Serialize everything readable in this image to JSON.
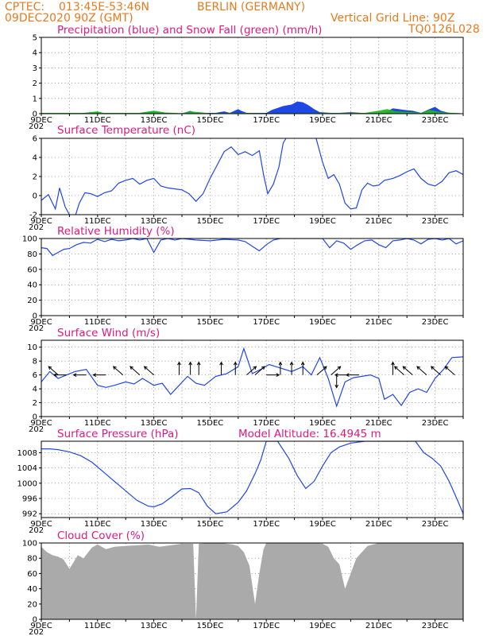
{
  "header": {
    "line1_left": "CPTEC:",
    "line1_coords": "013:45E-53:46N",
    "line1_location": "BERLIN (GERMANY)",
    "line2_left": "09DEC2020 90Z (GMT)",
    "line2_right": "Vertical Grid Line: 90Z",
    "line3_right": "TQ0126L028",
    "cut_label": "202"
  },
  "colors": {
    "header": "#e87a1e",
    "title": "#e0197d",
    "line": "#1f47e6",
    "precip": "#1f47e6",
    "snow": "#22b822",
    "cloud": "#aaaaaa"
  },
  "x_axis": {
    "day_start": 9,
    "day_end": 24,
    "tick_labels": [
      "9DEC",
      "11DEC",
      "13DEC",
      "15DEC",
      "17DEC",
      "19DEC",
      "21DEC",
      "23DEC"
    ]
  },
  "chart_data": [
    {
      "id": "precip",
      "type": "area",
      "title": "Precipitation (blue) and Snow Fall (green) (mm/h)",
      "ylim": [
        0,
        5
      ],
      "yticks": [
        "0",
        "1",
        "2",
        "3",
        "4",
        "5"
      ],
      "series": [
        {
          "name": "Precipitation",
          "color": "#1f47e6",
          "x": [
            9.0,
            10.5,
            11.0,
            11.2,
            12.5,
            13.0,
            13.2,
            13.4,
            14.0,
            14.3,
            14.5,
            15.2,
            15.5,
            15.7,
            16.0,
            16.1,
            16.3,
            17.0,
            17.2,
            17.6,
            17.9,
            18.1,
            18.3,
            18.5,
            18.7,
            18.9,
            19.3,
            19.6,
            20.0,
            20.4,
            20.8,
            21.2,
            21.5,
            21.9,
            22.2,
            22.5,
            22.8,
            23.0,
            23.2,
            23.5,
            24.0
          ],
          "values": [
            0.02,
            0.03,
            0.12,
            0.03,
            0.05,
            0.18,
            0.12,
            0.05,
            0.02,
            0.18,
            0.05,
            0.05,
            0.15,
            0.05,
            0.3,
            0.2,
            0.05,
            0.05,
            0.25,
            0.5,
            0.6,
            0.8,
            0.75,
            0.55,
            0.3,
            0.1,
            0.05,
            0.05,
            0.1,
            0.05,
            0.05,
            0.05,
            0.35,
            0.25,
            0.2,
            0.05,
            0.3,
            0.45,
            0.2,
            0.05,
            0.02
          ]
        },
        {
          "name": "Snow Fall",
          "color": "#22b822",
          "x": [
            9.0,
            10.5,
            11.0,
            11.2,
            12.5,
            13.0,
            13.4,
            14.0,
            14.3,
            14.6,
            15.0,
            16.0,
            17.0,
            20.5,
            21.0,
            21.3,
            21.6,
            22.2,
            22.5,
            22.8,
            23.2,
            24.0
          ],
          "values": [
            0.05,
            0.05,
            0.15,
            0.05,
            0.05,
            0.2,
            0.08,
            0.03,
            0.15,
            0.1,
            0.03,
            0.05,
            0.03,
            0.05,
            0.2,
            0.3,
            0.15,
            0.1,
            0.05,
            0.25,
            0.1,
            0.02
          ]
        }
      ]
    },
    {
      "id": "temp",
      "type": "line",
      "title": "Surface Temperature (nC)",
      "ylim": [
        -2,
        6
      ],
      "yticks": [
        "-2",
        "0",
        "2",
        "4",
        "6"
      ],
      "series": [
        {
          "name": "",
          "x": [
            9.0,
            9.25,
            9.5,
            9.65,
            9.85,
            10.0,
            10.2,
            10.35,
            10.55,
            10.75,
            11.0,
            11.25,
            11.5,
            11.75,
            12.0,
            12.25,
            12.5,
            12.75,
            13.0,
            13.25,
            13.5,
            13.75,
            14.0,
            14.25,
            14.5,
            14.75,
            15.0,
            15.25,
            15.5,
            15.75,
            16.0,
            16.25,
            16.5,
            16.75,
            16.9,
            17.05,
            17.25,
            17.45,
            17.6,
            17.8,
            18.0,
            18.5,
            18.75,
            19.0,
            19.2,
            19.4,
            19.6,
            19.8,
            20.0,
            20.2,
            20.4,
            20.6,
            20.8,
            21.0,
            21.2,
            21.5,
            21.75,
            22.0,
            22.25,
            22.5,
            22.75,
            23.0,
            23.25,
            23.5,
            23.75,
            24.0
          ],
          "values": [
            -0.5,
            0.1,
            -1.4,
            0.8,
            -1.2,
            -2.0,
            -2.2,
            -0.8,
            0.3,
            0.2,
            -0.1,
            0.3,
            0.5,
            1.3,
            1.6,
            1.8,
            1.2,
            1.6,
            1.8,
            1.0,
            0.8,
            0.7,
            0.6,
            0.2,
            -0.6,
            0.2,
            1.8,
            3.2,
            4.6,
            5.1,
            4.3,
            4.6,
            4.2,
            4.7,
            2.2,
            0.2,
            1.2,
            3.0,
            5.5,
            6.5,
            7.0,
            7.0,
            6.2,
            3.5,
            1.8,
            2.2,
            1.2,
            -0.8,
            -1.4,
            -1.3,
            0.6,
            1.3,
            1.0,
            1.1,
            1.6,
            1.8,
            2.1,
            2.5,
            2.8,
            1.8,
            1.2,
            1.0,
            1.5,
            2.4,
            2.6,
            2.2
          ]
        }
      ]
    },
    {
      "id": "rh",
      "type": "line",
      "title": "Relative Humidity (%)",
      "ylim": [
        0,
        100
      ],
      "yticks": [
        "0",
        "20",
        "40",
        "60",
        "80",
        "100"
      ],
      "series": [
        {
          "name": "",
          "x": [
            9.0,
            9.2,
            9.4,
            9.6,
            9.8,
            10.0,
            10.25,
            10.5,
            10.75,
            11.0,
            11.25,
            11.5,
            11.75,
            12.0,
            12.25,
            12.5,
            12.75,
            13.0,
            13.25,
            13.5,
            13.75,
            14.0,
            14.5,
            15.0,
            15.5,
            16.0,
            16.25,
            16.5,
            16.75,
            17.0,
            17.25,
            17.5,
            18.0,
            18.5,
            19.0,
            19.25,
            19.5,
            19.75,
            20.0,
            20.25,
            20.5,
            20.75,
            21.0,
            21.25,
            21.5,
            21.75,
            22.0,
            22.25,
            22.5,
            22.75,
            23.0,
            23.25,
            23.5,
            23.75,
            24.0
          ],
          "values": [
            88,
            87,
            78,
            82,
            86,
            87,
            92,
            95,
            94,
            99,
            96,
            99,
            97,
            98,
            100,
            98,
            100,
            82,
            98,
            100,
            98,
            100,
            98,
            97,
            99,
            98,
            96,
            90,
            84,
            92,
            98,
            100,
            100,
            100,
            100,
            88,
            97,
            94,
            86,
            92,
            97,
            98,
            92,
            88,
            97,
            98,
            100,
            98,
            93,
            99,
            100,
            98,
            100,
            93,
            97
          ]
        }
      ]
    },
    {
      "id": "wind",
      "type": "line",
      "title": "Surface Wind (m/s)",
      "ylim": [
        0,
        11
      ],
      "yticks": [
        "0",
        "2",
        "4",
        "6",
        "8",
        "10"
      ],
      "series": [
        {
          "name": "",
          "x": [
            9.0,
            9.3,
            9.6,
            9.9,
            10.2,
            10.6,
            11.0,
            11.3,
            11.6,
            12.0,
            12.3,
            12.6,
            13.0,
            13.3,
            13.6,
            13.9,
            14.2,
            14.5,
            14.8,
            15.2,
            15.6,
            16.0,
            16.2,
            16.5,
            16.8,
            17.1,
            17.5,
            17.9,
            18.3,
            18.6,
            18.9,
            19.2,
            19.5,
            19.8,
            20.1,
            20.4,
            20.7,
            21.0,
            21.2,
            21.5,
            21.8,
            22.1,
            22.4,
            22.7,
            23.0,
            23.3,
            23.6,
            24.0
          ],
          "values": [
            5.0,
            6.5,
            5.5,
            6.0,
            6.5,
            6.8,
            4.5,
            4.2,
            4.5,
            5.0,
            4.7,
            5.5,
            4.5,
            4.8,
            3.2,
            4.5,
            5.8,
            4.8,
            4.5,
            5.8,
            6.2,
            7.2,
            9.8,
            6.2,
            6.8,
            7.5,
            7.0,
            6.5,
            7.2,
            6.0,
            8.5,
            5.5,
            1.5,
            5.0,
            5.6,
            5.8,
            6.0,
            5.5,
            2.5,
            3.2,
            1.6,
            3.5,
            4.0,
            3.5,
            5.5,
            6.8,
            8.5,
            8.6
          ]
        }
      ]
    },
    {
      "id": "pres",
      "type": "line",
      "title": "Surface Pressure (hPa)",
      "subtitle": "Model Altitude: 16.4945 m",
      "ylim": [
        991,
        1011
      ],
      "yticks": [
        "992",
        "996",
        "1000",
        "1004",
        "1008"
      ],
      "series": [
        {
          "name": "",
          "x": [
            9.0,
            9.3,
            9.6,
            10.0,
            10.4,
            10.8,
            11.2,
            11.6,
            12.0,
            12.4,
            12.8,
            13.0,
            13.3,
            13.6,
            14.0,
            14.3,
            14.6,
            14.9,
            15.2,
            15.6,
            16.0,
            16.3,
            16.6,
            16.8,
            17.0,
            17.4,
            17.8,
            18.1,
            18.4,
            18.7,
            19.0,
            19.3,
            19.6,
            20.0,
            20.5,
            21.0,
            21.5,
            22.0,
            22.3,
            22.6,
            22.9,
            23.2,
            23.5,
            23.8,
            24.0
          ],
          "values": [
            1009.0,
            1009.0,
            1008.8,
            1008.2,
            1007.2,
            1005.5,
            1003.0,
            1000.5,
            998.0,
            995.5,
            994.0,
            993.8,
            994.6,
            996.2,
            998.5,
            998.6,
            997.5,
            994.0,
            992.0,
            992.5,
            995.0,
            998.0,
            1002.5,
            1006.0,
            1011.0,
            1011.0,
            1006.5,
            1002.0,
            998.6,
            1000.5,
            1004.5,
            1008.0,
            1009.5,
            1010.5,
            1011.0,
            1011.0,
            1011.0,
            1011.0,
            1011.0,
            1008.0,
            1006.5,
            1004.5,
            1000.5,
            995.5,
            992.0
          ]
        }
      ]
    },
    {
      "id": "cloud",
      "type": "area",
      "title": "Cloud Cover (%)",
      "ylim": [
        0,
        100
      ],
      "yticks": [
        "0",
        "20",
        "40",
        "60",
        "80",
        "100"
      ],
      "series": [
        {
          "name": "",
          "color": "#aaaaaa",
          "x": [
            9.0,
            9.2,
            9.4,
            9.6,
            9.8,
            10.0,
            10.3,
            10.5,
            10.8,
            11.0,
            11.3,
            11.6,
            12.0,
            12.4,
            12.8,
            13.2,
            13.6,
            14.0,
            14.4,
            14.5,
            14.6,
            15.0,
            15.4,
            15.8,
            16.0,
            16.2,
            16.4,
            16.6,
            16.75,
            16.9,
            17.0,
            17.2,
            17.6,
            18.0,
            18.4,
            18.8,
            19.0,
            19.2,
            19.4,
            19.6,
            19.8,
            20.0,
            20.2,
            20.6,
            21.0,
            21.5,
            22.0,
            22.5,
            23.0,
            23.5,
            24.0
          ],
          "values": [
            95,
            88,
            84,
            82,
            78,
            66,
            84,
            80,
            94,
            98,
            92,
            95,
            96,
            97,
            98,
            95,
            97,
            99,
            99,
            0,
            99,
            100,
            100,
            98,
            96,
            88,
            70,
            20,
            60,
            92,
            100,
            100,
            100,
            100,
            100,
            100,
            99,
            95,
            80,
            72,
            40,
            60,
            80,
            96,
            100,
            100,
            100,
            100,
            100,
            100,
            100
          ]
        }
      ]
    }
  ],
  "wind_arrows": [
    {
      "x": 9.6,
      "y": 6.0,
      "dir": "up-left"
    },
    {
      "x": 9.9,
      "y": 6.0,
      "dir": "left"
    },
    {
      "x": 10.6,
      "y": 6.0,
      "dir": "left"
    },
    {
      "x": 11.3,
      "y": 6.0,
      "dir": "left"
    },
    {
      "x": 11.9,
      "y": 6.0,
      "dir": "up-left"
    },
    {
      "x": 12.5,
      "y": 6.0,
      "dir": "up-left"
    },
    {
      "x": 13.0,
      "y": 6.0,
      "dir": "up-left"
    },
    {
      "x": 13.9,
      "y": 6.0,
      "dir": "up"
    },
    {
      "x": 14.3,
      "y": 6.0,
      "dir": "up"
    },
    {
      "x": 14.6,
      "y": 6.0,
      "dir": "up"
    },
    {
      "x": 15.4,
      "y": 6.0,
      "dir": "up"
    },
    {
      "x": 15.9,
      "y": 6.0,
      "dir": "up"
    },
    {
      "x": 16.3,
      "y": 6.0,
      "dir": "up-right"
    },
    {
      "x": 16.6,
      "y": 6.0,
      "dir": "up-right"
    },
    {
      "x": 17.0,
      "y": 6.0,
      "dir": "right"
    },
    {
      "x": 17.5,
      "y": 6.0,
      "dir": "up"
    },
    {
      "x": 17.9,
      "y": 6.0,
      "dir": "up"
    },
    {
      "x": 18.3,
      "y": 6.0,
      "dir": "up"
    },
    {
      "x": 18.8,
      "y": 6.0,
      "dir": "up-right"
    },
    {
      "x": 19.3,
      "y": 6.0,
      "dir": "up-right"
    },
    {
      "x": 19.5,
      "y": 6.0,
      "dir": "down"
    },
    {
      "x": 19.9,
      "y": 6.0,
      "dir": "left"
    },
    {
      "x": 20.3,
      "y": 6.0,
      "dir": "left"
    },
    {
      "x": 21.5,
      "y": 6.0,
      "dir": "up"
    },
    {
      "x": 21.9,
      "y": 6.0,
      "dir": "up-left"
    },
    {
      "x": 22.2,
      "y": 6.0,
      "dir": "up-left"
    },
    {
      "x": 22.7,
      "y": 6.0,
      "dir": "up-left"
    },
    {
      "x": 23.2,
      "y": 6.0,
      "dir": "up-left"
    },
    {
      "x": 23.7,
      "y": 6.0,
      "dir": "up-left"
    }
  ]
}
